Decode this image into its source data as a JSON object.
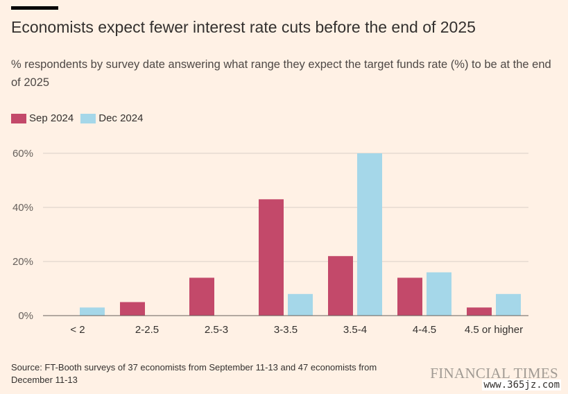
{
  "title": "Economists expect fewer interest rate cuts before the end of 2025",
  "subtitle": "% respondents by survey date answering what range they expect the target funds rate (%) to be at the end of 2025",
  "source": "Source: FT-Booth surveys of 37 economists from September 11-13 and 47 economists from December 11-13",
  "brand": "FINANCIAL TIMES",
  "watermark": "www.365jz.com",
  "colors": {
    "background": "#fff1e5",
    "sep": "#c3496a",
    "dec": "#a5d7e9",
    "grid": "#d8cfc6",
    "baseline": "#66605c"
  },
  "chart_data": {
    "type": "bar",
    "categories": [
      "< 2",
      "2-2.5",
      "2.5-3",
      "3-3.5",
      "3.5-4",
      "4-4.5",
      "4.5 or higher"
    ],
    "series": [
      {
        "name": "Sep 2024",
        "values": [
          0,
          5,
          14,
          43,
          22,
          14,
          3
        ]
      },
      {
        "name": "Dec 2024",
        "values": [
          3,
          0,
          0,
          8,
          60,
          16,
          8
        ]
      }
    ],
    "ylim": [
      0,
      60
    ],
    "yticks": [
      0,
      20,
      40,
      60
    ],
    "ytick_labels": [
      "0%",
      "20%",
      "40%",
      "60%"
    ],
    "grid": true,
    "legend_position": "top-left"
  }
}
